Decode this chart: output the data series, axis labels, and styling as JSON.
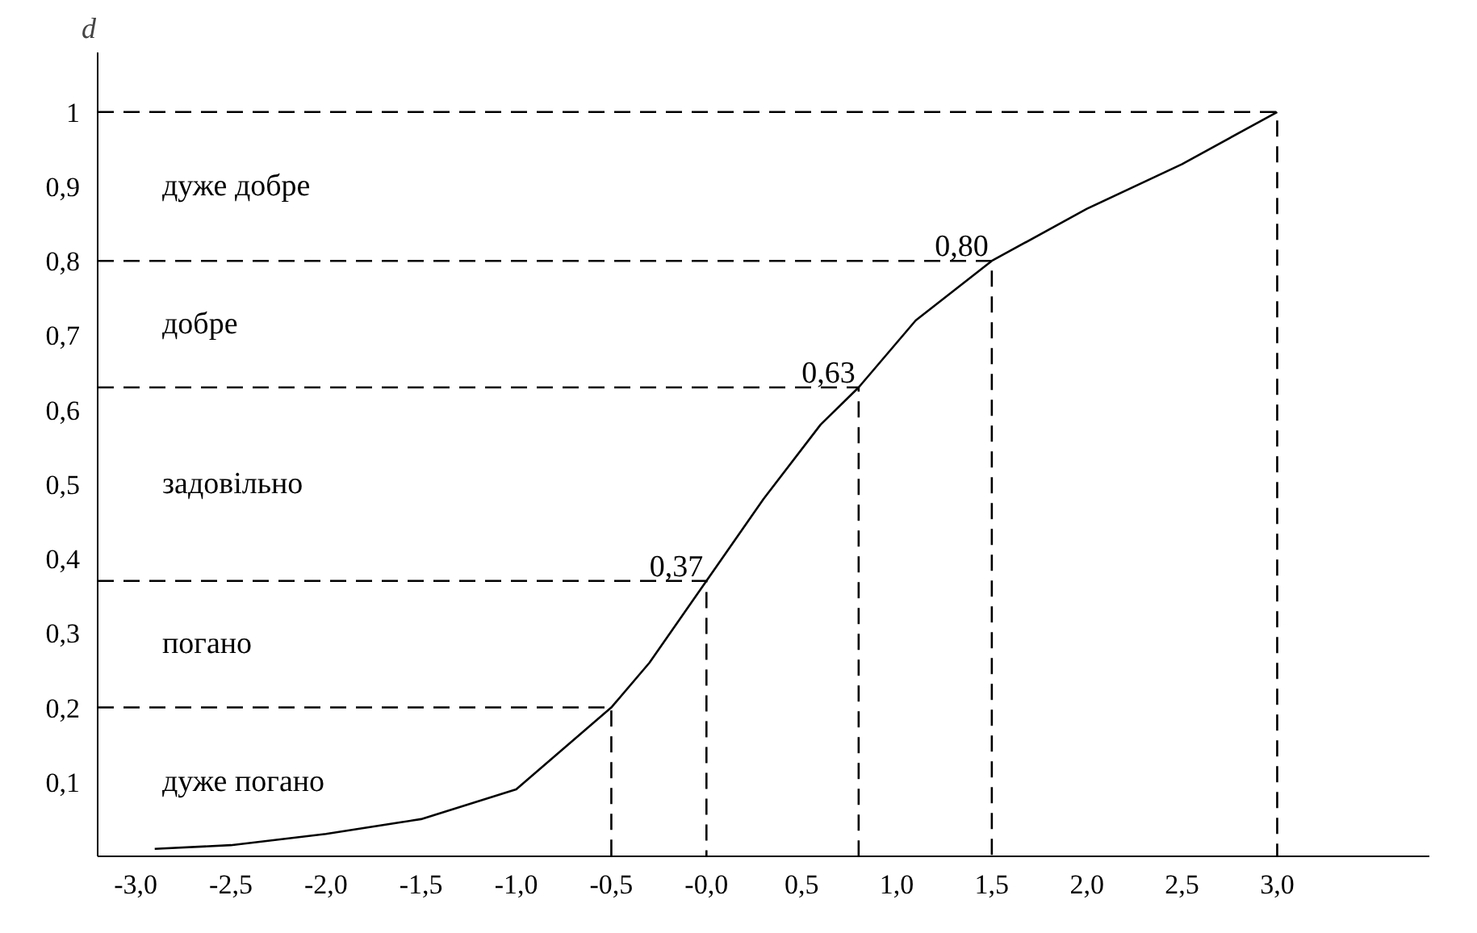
{
  "chart_data": {
    "type": "line",
    "ylabel": "d",
    "xlim": [
      -3.2,
      3.8
    ],
    "ylim": [
      0,
      1.08
    ],
    "xticks": [
      {
        "value": -3,
        "label": "-3,0"
      },
      {
        "value": -2.5,
        "label": "-2,5"
      },
      {
        "value": -2,
        "label": "-2,0"
      },
      {
        "value": -1.5,
        "label": "-1,5"
      },
      {
        "value": -1,
        "label": "-1,0"
      },
      {
        "value": -0.5,
        "label": "-0,5"
      },
      {
        "value": 0,
        "label": "-0,0"
      },
      {
        "value": 0.5,
        "label": "0,5"
      },
      {
        "value": 1,
        "label": "1,0"
      },
      {
        "value": 1.5,
        "label": "1,5"
      },
      {
        "value": 2,
        "label": "2,0"
      },
      {
        "value": 2.5,
        "label": "2,5"
      },
      {
        "value": 3,
        "label": "3,0"
      }
    ],
    "yticks": [
      {
        "value": 0.1,
        "label": "0,1"
      },
      {
        "value": 0.2,
        "label": "0,2"
      },
      {
        "value": 0.3,
        "label": "0,3"
      },
      {
        "value": 0.4,
        "label": "0,4"
      },
      {
        "value": 0.5,
        "label": "0,5"
      },
      {
        "value": 0.6,
        "label": "0,6"
      },
      {
        "value": 0.7,
        "label": "0,7"
      },
      {
        "value": 0.8,
        "label": "0,8"
      },
      {
        "value": 0.9,
        "label": "0,9"
      },
      1
    ],
    "grid": false,
    "marker": "none",
    "line_style": "solid",
    "series": [
      {
        "color": "#000000",
        "x": [
          -2.9,
          -2.5,
          -2,
          -1.5,
          -1,
          -0.5,
          -0.3,
          0,
          0.3,
          0.6,
          0.8,
          1.1,
          1.5,
          2,
          2.5,
          3
        ],
        "values": [
          0.01,
          0.015,
          0.03,
          0.05,
          0.09,
          0.2,
          0.26,
          0.37,
          0.48,
          0.58,
          0.63,
          0.72,
          0.8,
          0.87,
          0.93,
          1
        ]
      },
      {
        "color": "#000000",
        "line_style": "dashed",
        "x": [
          -3.2,
          -0.5,
          -0.5
        ],
        "values": [
          0.2,
          0.2,
          0
        ]
      },
      {
        "color": "#000000",
        "line_style": "dashed",
        "x": [
          -3.2,
          0,
          0
        ],
        "values": [
          0.37,
          0.37,
          0
        ]
      },
      {
        "color": "#000000",
        "line_style": "dashed",
        "x": [
          -3.2,
          0.8,
          0.8
        ],
        "values": [
          0.63,
          0.63,
          0
        ]
      },
      {
        "color": "#000000",
        "line_style": "dashed",
        "x": [
          -3.2,
          1.5,
          1.5
        ],
        "values": [
          0.8,
          0.8,
          0
        ]
      },
      {
        "color": "#000000",
        "line_style": "dashed",
        "x": [
          -3.2,
          3,
          3
        ],
        "values": [
          1,
          1,
          0
        ]
      }
    ],
    "annotations": [
      "дуже добре",
      "добре",
      "задовільно",
      "погано",
      "дуже погано",
      {
        "text": "0,37",
        "x": 0,
        "y": 0.37
      },
      {
        "text": "0,63",
        "x": 0.8,
        "y": 0.63
      },
      {
        "text": "0,80",
        "x": 1.5,
        "y": 0.8
      }
    ]
  }
}
